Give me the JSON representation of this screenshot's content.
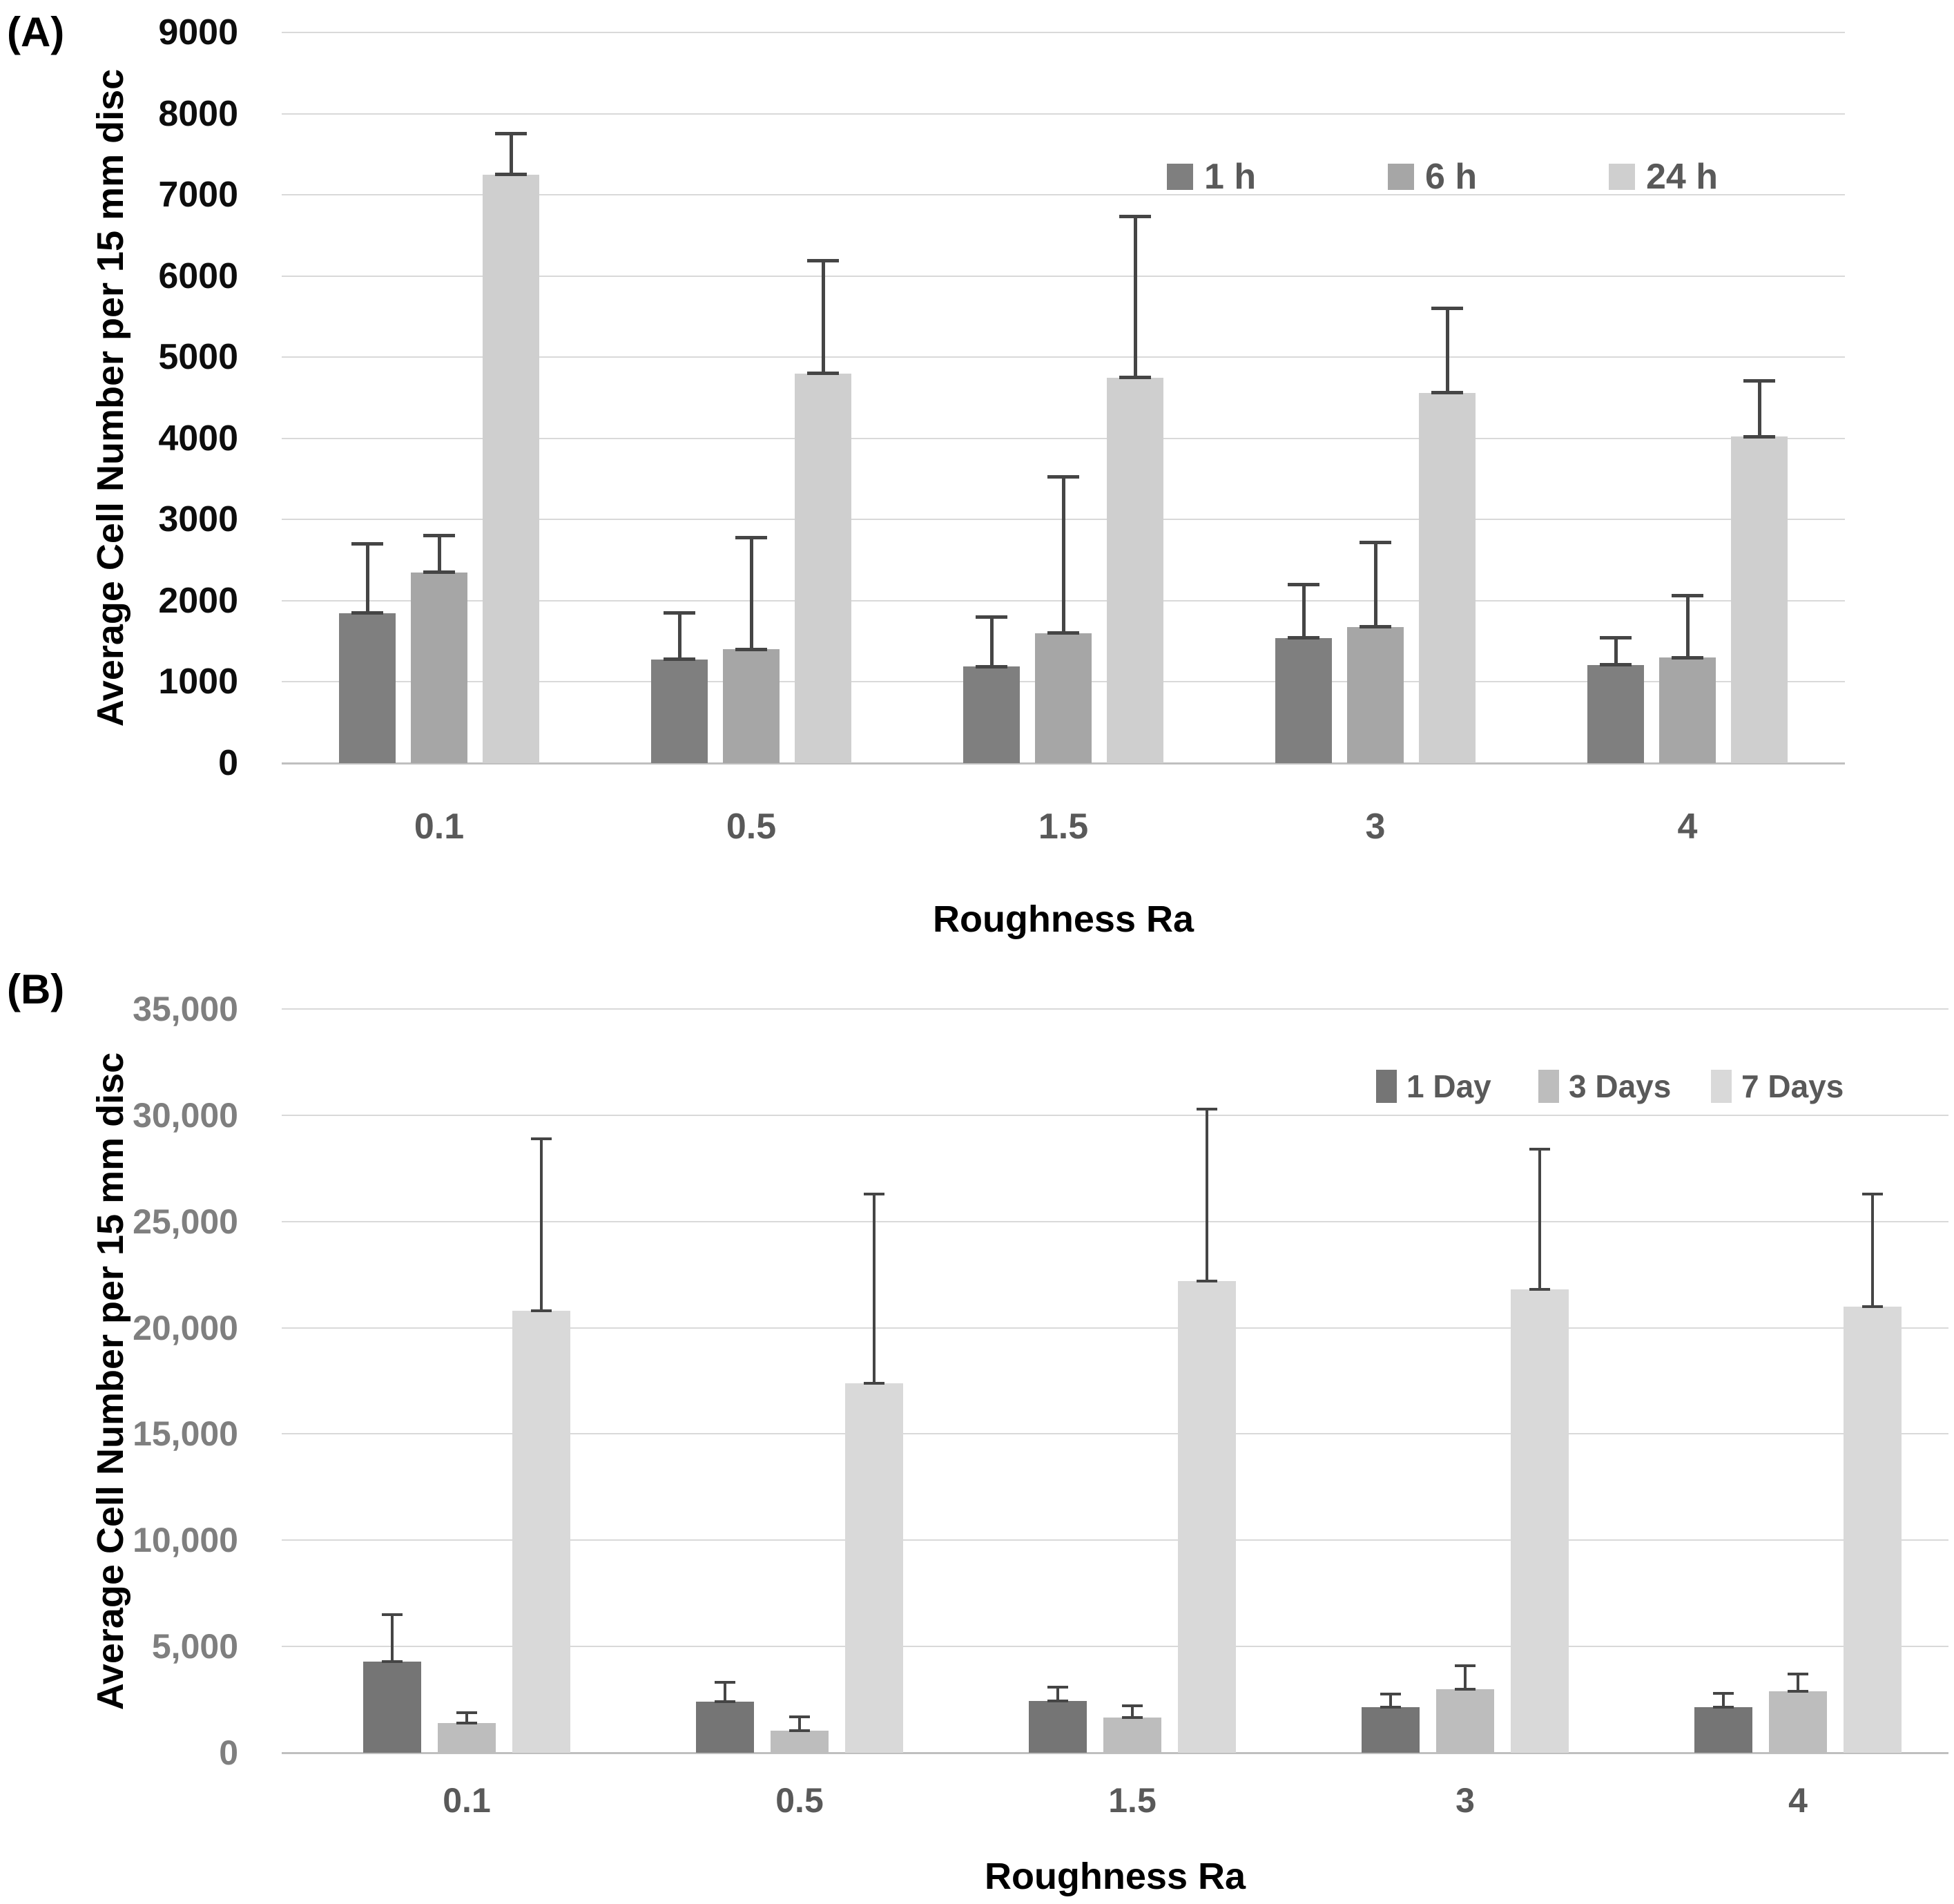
{
  "figure": {
    "background": "#ffffff",
    "gridline_color": "#d9d9d9",
    "axis_line_color": "#bfbfbf",
    "error_bar_color": "#454545"
  },
  "chart_data": [
    {
      "id": "A",
      "type": "bar",
      "panel_label": "(A)",
      "title": "",
      "xlabel": "Roughness Ra",
      "ylabel": "Average Cell Number per 15 mm disc",
      "ylim": [
        0,
        9000
      ],
      "grid": true,
      "legend_position": "top-right-inside",
      "y_ticks": [
        {
          "label": "0",
          "value": 0
        },
        {
          "label": "1000",
          "value": 1000
        },
        {
          "label": "2000",
          "value": 2000
        },
        {
          "label": "3000",
          "value": 3000
        },
        {
          "label": "4000",
          "value": 4000
        },
        {
          "label": "5000",
          "value": 5000
        },
        {
          "label": "6000",
          "value": 6000
        },
        {
          "label": "7000",
          "value": 7000
        },
        {
          "label": "8000",
          "value": 8000
        },
        {
          "label": "9000",
          "value": 9000
        }
      ],
      "categories": [
        "0.1",
        "0.5",
        "1.5",
        "3",
        "4"
      ],
      "series": [
        {
          "name": "1 h",
          "color": "#7f7f7f",
          "values": [
            1850,
            1280,
            1190,
            1540,
            1210
          ],
          "errors_plus": [
            850,
            570,
            610,
            660,
            330
          ]
        },
        {
          "name": "6 h",
          "color": "#a6a6a6",
          "values": [
            2350,
            1400,
            1600,
            1680,
            1300
          ],
          "errors_plus": [
            450,
            1380,
            1930,
            1040,
            760
          ]
        },
        {
          "name": "24 h",
          "color": "#cfcfcf",
          "values": [
            7250,
            4800,
            4750,
            4560,
            4020
          ],
          "errors_plus": [
            500,
            1390,
            1980,
            1040,
            690
          ]
        }
      ]
    },
    {
      "id": "B",
      "type": "bar",
      "panel_label": "(B)",
      "title": "",
      "xlabel": "Roughness Ra",
      "ylabel": "Average Cell Number per 15 mm disc",
      "ylim": [
        0,
        35000
      ],
      "grid": true,
      "legend_position": "top-right-inside",
      "y_ticks": [
        {
          "label": "0",
          "value": 0
        },
        {
          "label": "5,000",
          "value": 5000
        },
        {
          "label": "10,000",
          "value": 10000
        },
        {
          "label": "15,000",
          "value": 15000
        },
        {
          "label": "20,000",
          "value": 20000
        },
        {
          "label": "25,000",
          "value": 25000
        },
        {
          "label": "30,000",
          "value": 30000
        },
        {
          "label": "35,000",
          "value": 35000
        }
      ],
      "categories": [
        "0.1",
        "0.5",
        "1.5",
        "3",
        "4"
      ],
      "series": [
        {
          "name": "1 Day",
          "color": "#757575",
          "values": [
            4300,
            2400,
            2450,
            2150,
            2150
          ],
          "errors_plus": [
            2200,
            900,
            650,
            600,
            650
          ]
        },
        {
          "name": "3 Days",
          "color": "#bdbdbd",
          "values": [
            1400,
            1050,
            1650,
            3000,
            2900
          ],
          "errors_plus": [
            500,
            650,
            550,
            1100,
            800
          ]
        },
        {
          "name": "7 Days",
          "color": "#d9d9d9",
          "values": [
            20800,
            17400,
            22200,
            21800,
            21000
          ],
          "errors_plus": [
            8100,
            8900,
            8100,
            6600,
            5300
          ]
        }
      ]
    }
  ]
}
